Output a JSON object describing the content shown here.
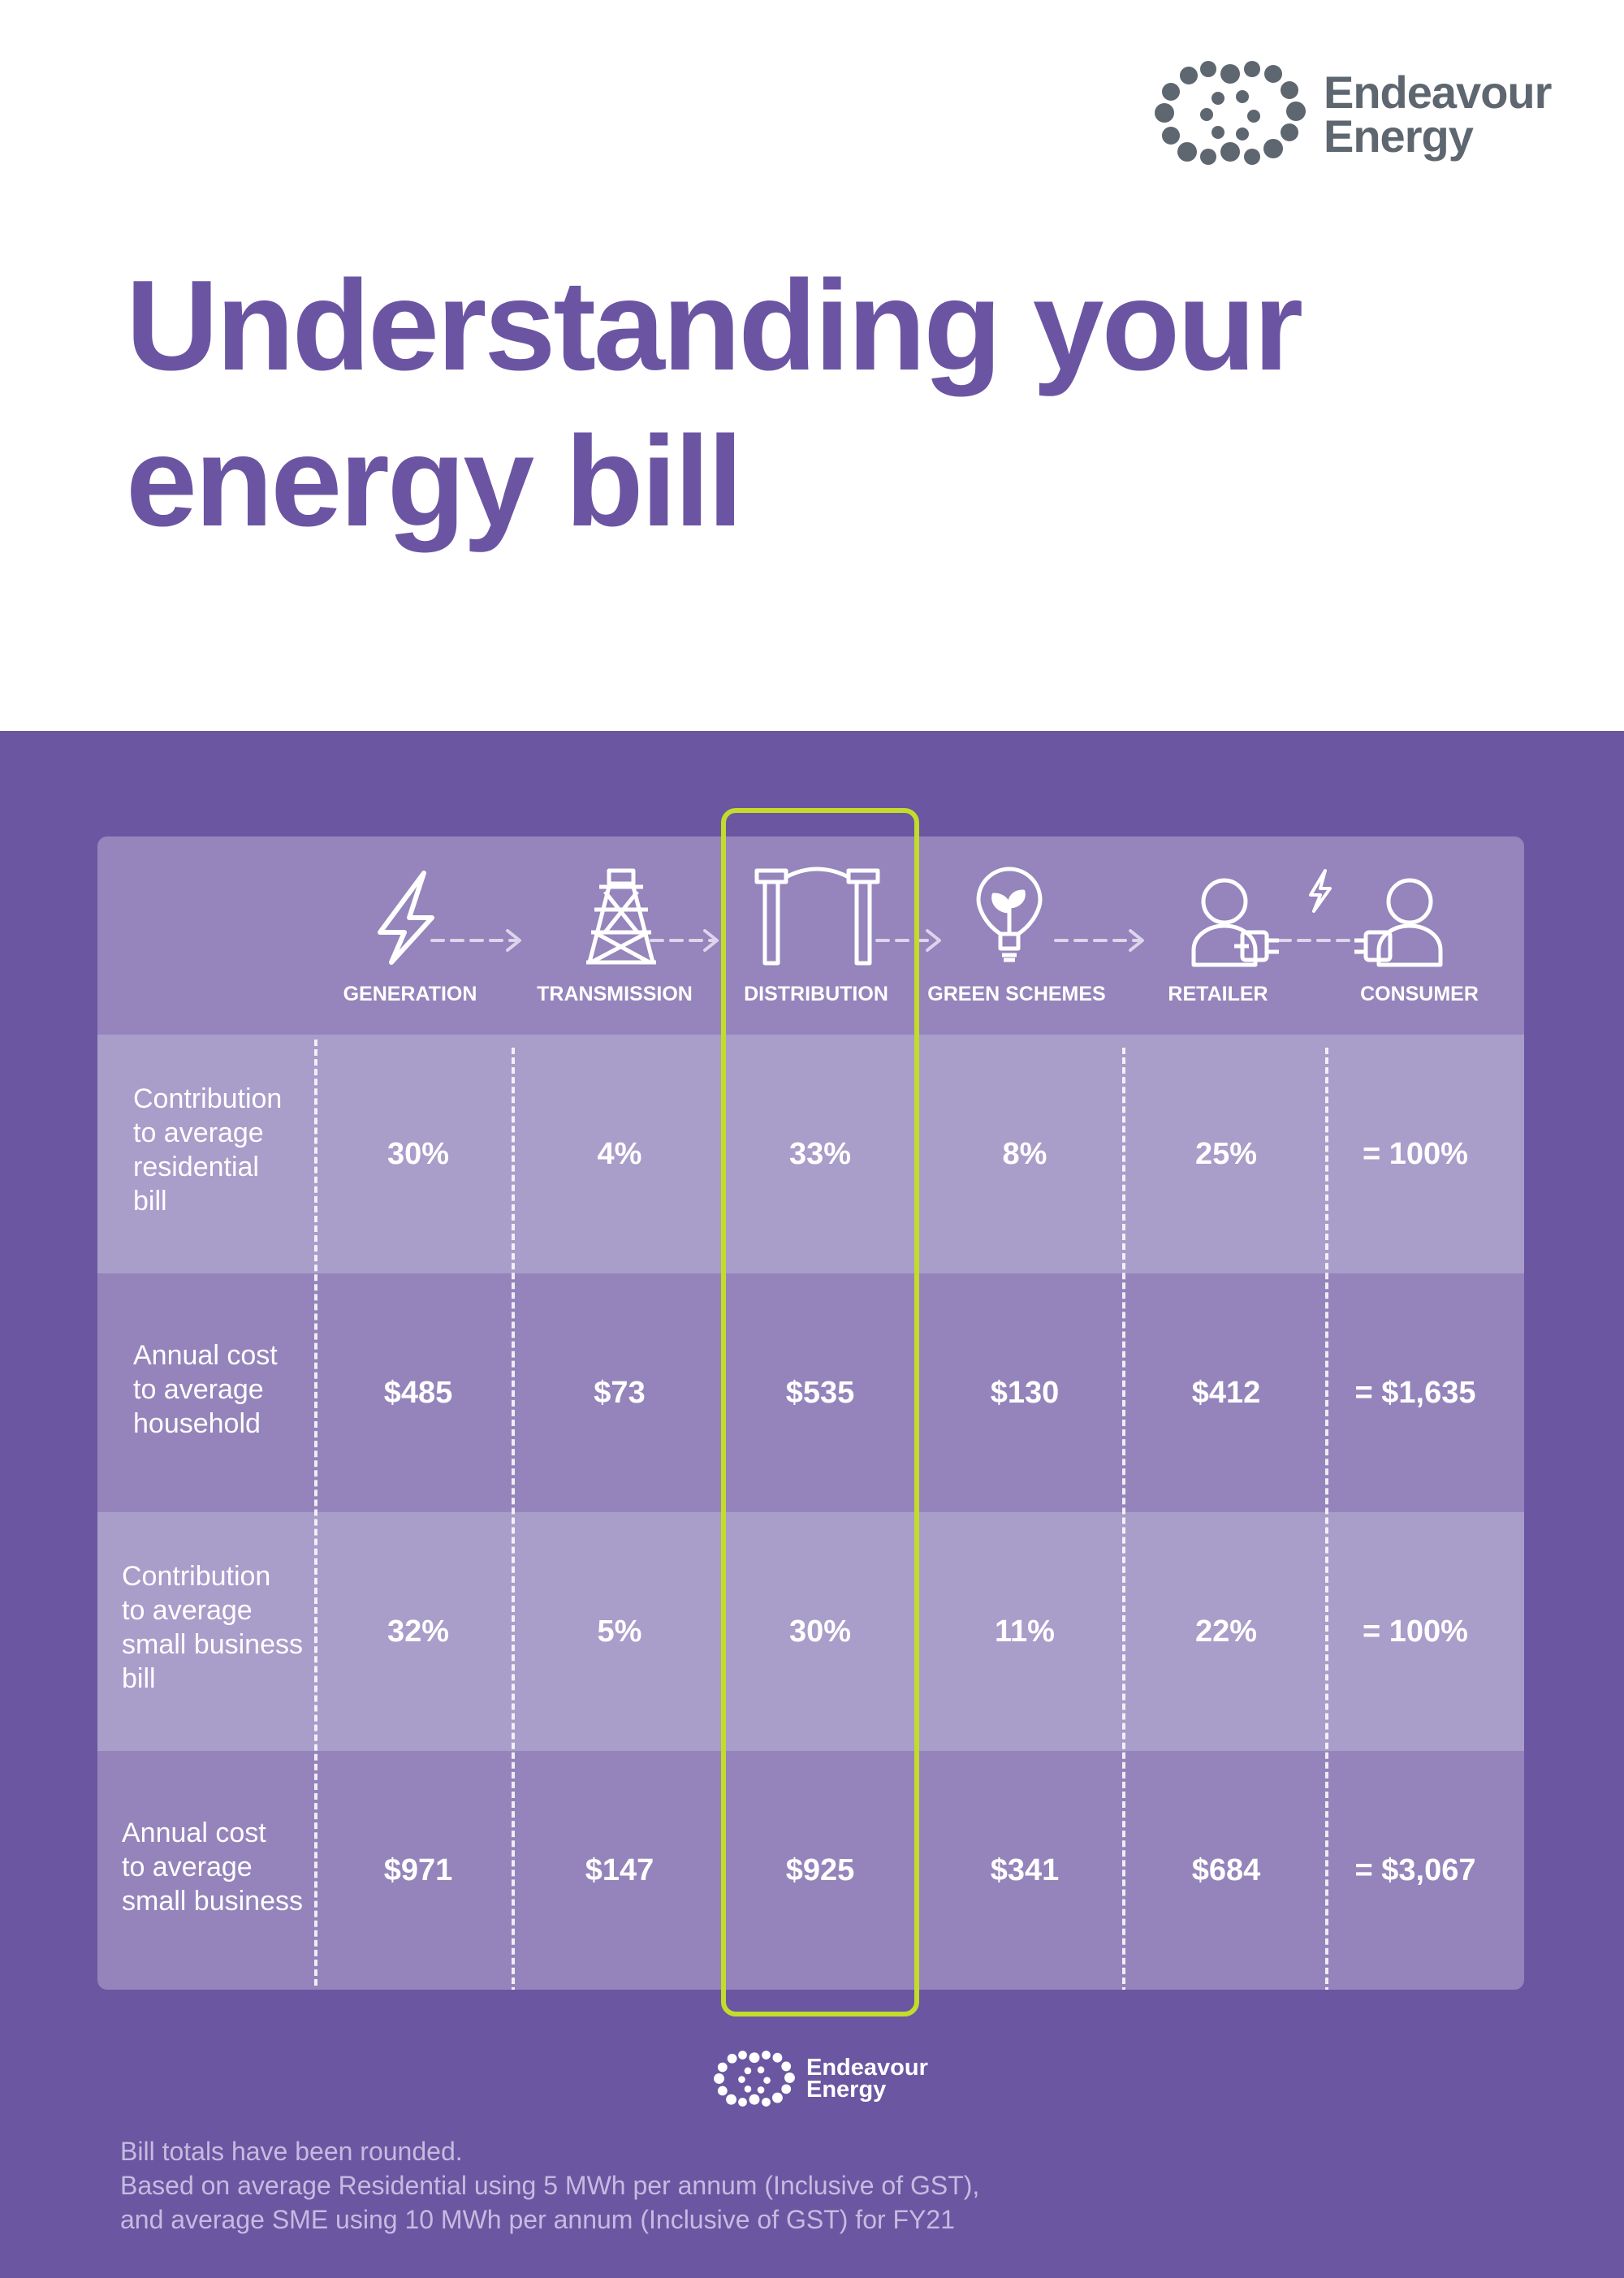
{
  "brand": {
    "name_line1": "Endeavour",
    "name_line2": "Energy"
  },
  "title": {
    "line1": "Understanding your",
    "line2": "energy bill"
  },
  "columns": [
    {
      "label": "GENERATION",
      "icon": "lightning-bolt-icon"
    },
    {
      "label": "TRANSMISSION",
      "icon": "transmission-tower-icon"
    },
    {
      "label": "DISTRIBUTION",
      "icon": "power-poles-icon"
    },
    {
      "label": "GREEN SCHEMES",
      "icon": "lightbulb-leaf-icon"
    },
    {
      "label": "RETAILER",
      "icon": "person-plug-icon"
    },
    {
      "label": "CONSUMER",
      "icon": "person-socket-icon"
    }
  ],
  "rows": [
    {
      "label": [
        "Contribution",
        "to average",
        "residential",
        "bill"
      ],
      "values": [
        "30%",
        "4%",
        "33%",
        "8%",
        "25%",
        "= 100%"
      ]
    },
    {
      "label": [
        "Annual cost",
        "to average",
        "household"
      ],
      "values": [
        "$485",
        "$73",
        "$535",
        "$130",
        "$412",
        "= $1,635"
      ]
    },
    {
      "label": [
        "Contribution",
        "to average",
        "small business",
        "bill"
      ],
      "values": [
        "32%",
        "5%",
        "30%",
        "11%",
        "22%",
        "= 100%"
      ]
    },
    {
      "label": [
        "Annual cost",
        "to average",
        "small business"
      ],
      "values": [
        "$971",
        "$147",
        "$925",
        "$341",
        "$684",
        "= $3,067"
      ]
    }
  ],
  "footnotes": [
    "Bill totals have been rounded.",
    "Based on average Residential using 5 MWh per annum (Inclusive of GST),",
    "and average SME using 10 MWh per annum (Inclusive of GST) for FY21"
  ],
  "colors": {
    "title": "#6b55a3",
    "band": "#6a56a1",
    "highlight": "#c3dc2b",
    "logo_grey": "#5e6670"
  }
}
